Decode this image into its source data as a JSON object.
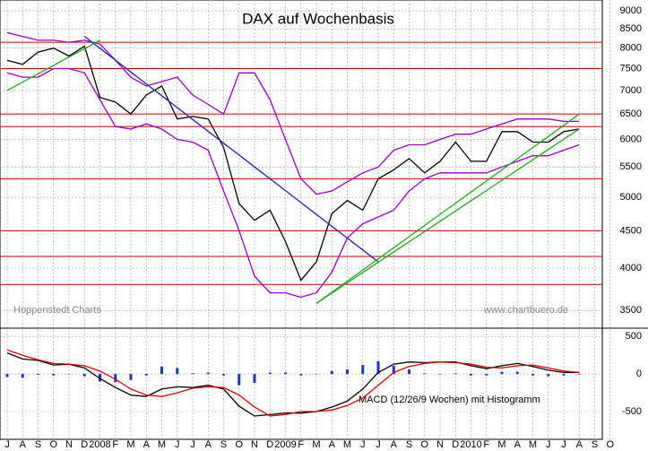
{
  "chart_data": [
    {
      "type": "line",
      "title": "DAX  auf Wochenbasis",
      "source": "Hoppenstedt Charts",
      "website": "www.chartbuero.de",
      "log_scale": true,
      "grid": true,
      "ylim": [
        3320,
        9310
      ],
      "yticks": [
        3500,
        4000,
        4500,
        5000,
        5500,
        6000,
        6500,
        7000,
        7500,
        8000,
        8500,
        9000
      ],
      "levels": {
        "color": "#cc0000",
        "values": [
          8150,
          7500,
          6500,
          6250,
          5300,
          4500,
          4150,
          3800
        ]
      },
      "series": [
        {
          "color": "#9900cc",
          "values": [
            8400,
            8300,
            8200,
            8200,
            8150,
            8200,
            8100,
            7700,
            7300,
            7100,
            7200,
            7300,
            6900,
            6700,
            6500,
            7400,
            7400,
            6800,
            6000,
            5300,
            5050,
            5100,
            5250,
            5400,
            5500,
            5800,
            5900,
            5900,
            6000,
            6100,
            6100,
            6200,
            6300,
            6400,
            6400,
            6400,
            6350,
            6350,
            null,
            null
          ]
        },
        {
          "color": "#9900cc",
          "values": [
            7400,
            7300,
            7300,
            7500,
            7500,
            7400,
            6800,
            6250,
            6200,
            6300,
            6200,
            6000,
            5950,
            5800,
            5100,
            4500,
            3900,
            3700,
            3700,
            3650,
            3700,
            3950,
            4400,
            4600,
            4700,
            4800,
            5100,
            5300,
            5400,
            5400,
            5400,
            5400,
            5500,
            5600,
            5700,
            5700,
            5800,
            5900,
            null,
            null
          ]
        },
        {
          "color": "#000000",
          "values": [
            7700,
            7600,
            7900,
            8000,
            7800,
            8050,
            6850,
            6750,
            6500,
            6900,
            7100,
            6400,
            6450,
            6400,
            5850,
            4900,
            4650,
            4800,
            4350,
            3850,
            4080,
            4750,
            4950,
            4800,
            5300,
            5450,
            5650,
            5400,
            5600,
            5950,
            5600,
            5600,
            6150,
            6150,
            5950,
            5950,
            6150,
            6200,
            null,
            null
          ]
        },
        {
          "color": "#2222aa",
          "values": [
            null,
            null,
            null,
            null,
            null,
            8300,
            7996,
            7702,
            7420,
            7147,
            6885,
            6633,
            6389,
            6155,
            5929,
            5712,
            5502,
            5300,
            5106,
            4918,
            4738,
            4564,
            4397,
            4235,
            4080,
            null,
            null,
            null,
            null,
            null,
            null,
            null,
            null,
            null,
            null,
            null,
            null,
            null,
            null,
            null
          ]
        },
        {
          "color": "#22aa22",
          "values": [
            null,
            null,
            null,
            null,
            null,
            null,
            null,
            null,
            null,
            null,
            null,
            null,
            null,
            null,
            null,
            null,
            null,
            null,
            null,
            null,
            3580,
            3698,
            3819,
            3945,
            4074,
            4208,
            4346,
            4489,
            4636,
            4789,
            4946,
            5108,
            5276,
            5449,
            5628,
            5813,
            6004,
            6200,
            null,
            null
          ]
        },
        {
          "color": "#22aa22",
          "values": [
            null,
            null,
            null,
            null,
            null,
            null,
            null,
            null,
            null,
            null,
            null,
            null,
            null,
            null,
            null,
            null,
            null,
            null,
            null,
            null,
            3580,
            3708,
            3840,
            3977,
            4119,
            4266,
            4418,
            4576,
            4739,
            4908,
            5083,
            5264,
            5452,
            5647,
            5848,
            6057,
            6273,
            6500,
            null,
            null
          ]
        },
        {
          "color": "#22aa22",
          "values": [
            7000,
            7187,
            7379,
            7576,
            7779,
            7987,
            8200,
            null,
            null,
            null,
            null,
            null,
            null,
            null,
            null,
            null,
            null,
            null,
            null,
            null,
            null,
            null,
            null,
            null,
            null,
            null,
            null,
            null,
            null,
            null,
            null,
            null,
            null,
            null,
            null,
            null,
            null,
            null,
            null,
            null
          ]
        }
      ]
    },
    {
      "type": "macd",
      "annotation": "MACD (12/26/9 Wochen) mit Histogramm",
      "grid": true,
      "ylim": [
        -870,
        610
      ],
      "yticks": [
        500,
        0,
        -500
      ],
      "categories": [
        "J",
        "A",
        "S",
        "O",
        "N",
        "D",
        "2008",
        "F",
        "M",
        "A",
        "M",
        "J",
        "J",
        "A",
        "S",
        "O",
        "N",
        "D",
        "2009",
        "F",
        "M",
        "A",
        "M",
        "J",
        "J",
        "A",
        "S",
        "O",
        "N",
        "D",
        "2010",
        "F",
        "M",
        "A",
        "M",
        "J",
        "J",
        "A",
        "S",
        "O"
      ],
      "histogram": {
        "color": "#2233cc",
        "values": [
          -40,
          -50,
          -10,
          -20,
          0,
          -30,
          -100,
          -110,
          -80,
          -20,
          100,
          80,
          10,
          20,
          -20,
          -150,
          -120,
          20,
          20,
          -20,
          0,
          40,
          60,
          120,
          170,
          110,
          60,
          10,
          0,
          10,
          -20,
          -20,
          30,
          30,
          -20,
          -30,
          -20,
          0,
          null,
          null
        ]
      },
      "series": [
        {
          "color": "#000000",
          "values": [
            280,
            200,
            180,
            120,
            130,
            80,
            -60,
            -180,
            -280,
            -300,
            -200,
            -170,
            -180,
            -150,
            -200,
            -430,
            -560,
            -540,
            -520,
            -520,
            -500,
            -440,
            -360,
            -200,
            20,
            130,
            160,
            150,
            160,
            160,
            110,
            70,
            110,
            140,
            100,
            50,
            20,
            20,
            null,
            null
          ]
        },
        {
          "color": "#dd0000",
          "values": [
            320,
            250,
            190,
            140,
            130,
            110,
            40,
            -70,
            -200,
            -280,
            -300,
            -250,
            -190,
            -170,
            -180,
            -280,
            -440,
            -560,
            -540,
            -500,
            -500,
            -480,
            -420,
            -320,
            -150,
            20,
            100,
            140,
            160,
            150,
            130,
            90,
            80,
            110,
            120,
            80,
            40,
            20,
            null,
            null
          ]
        }
      ]
    }
  ]
}
